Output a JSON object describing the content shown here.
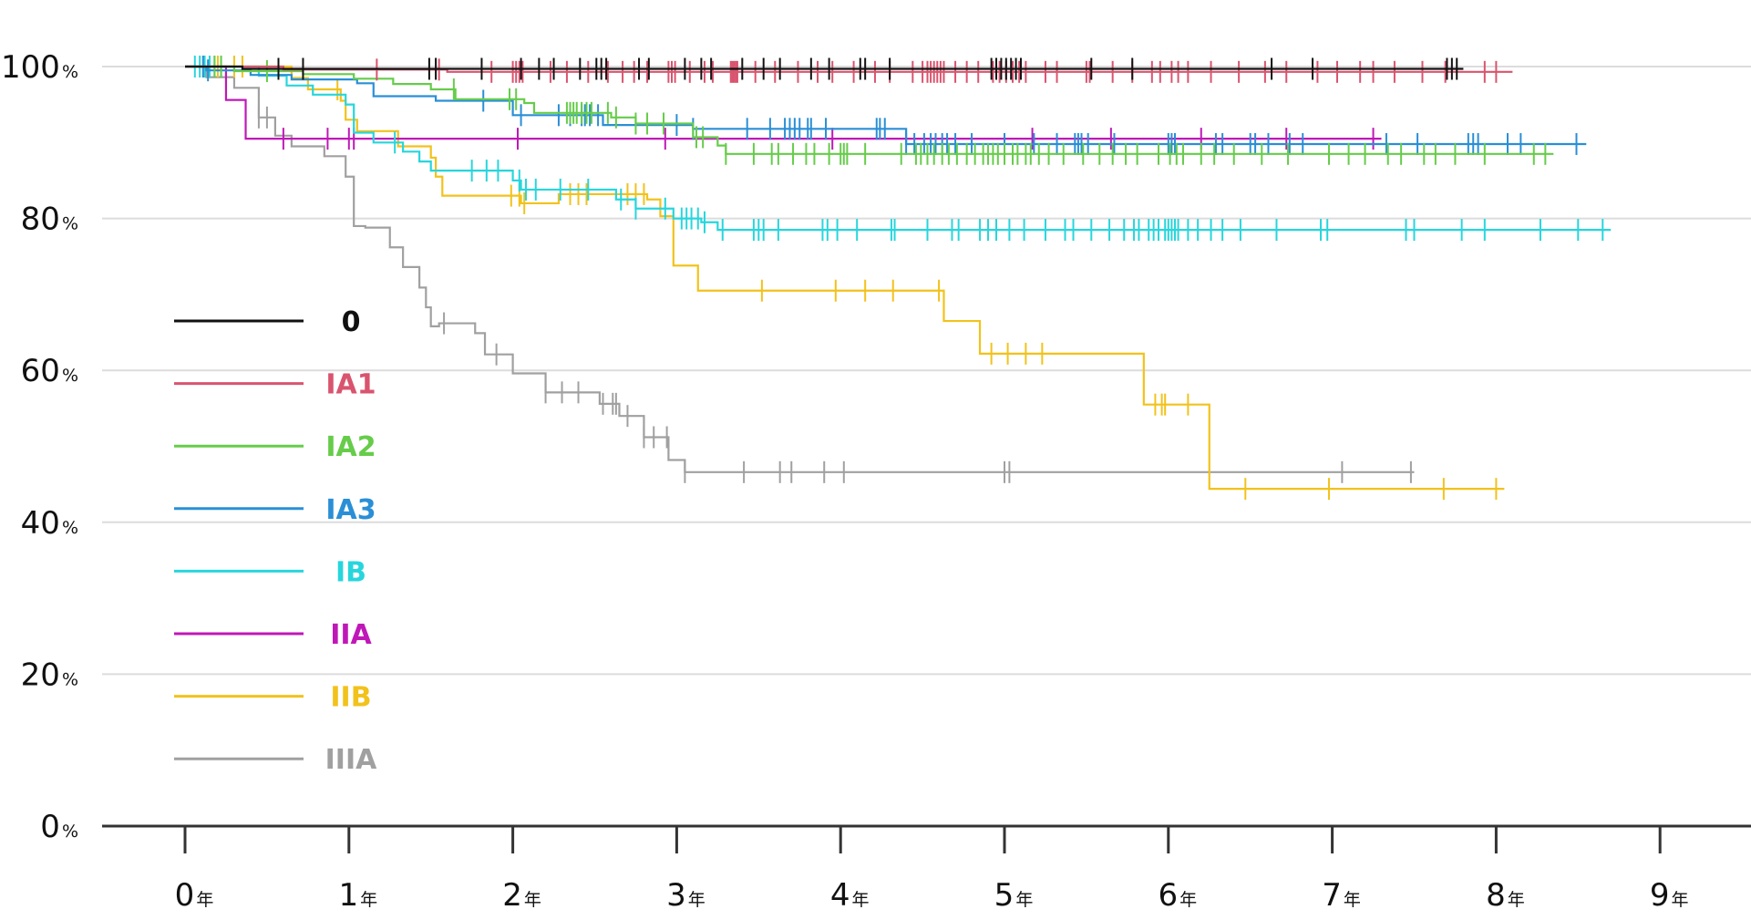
{
  "chart_data": {
    "type": "line",
    "subtype": "kaplan-meier-step",
    "title": "",
    "xlabel": "",
    "ylabel": "",
    "xlim": [
      -0.5,
      9.5
    ],
    "ylim": [
      0,
      100
    ],
    "x_ticks": [
      {
        "value": 0,
        "num": "0",
        "unit": "年"
      },
      {
        "value": 1,
        "num": "1",
        "unit": "年"
      },
      {
        "value": 2,
        "num": "2",
        "unit": "年"
      },
      {
        "value": 3,
        "num": "3",
        "unit": "年"
      },
      {
        "value": 4,
        "num": "4",
        "unit": "年"
      },
      {
        "value": 5,
        "num": "5",
        "unit": "年"
      },
      {
        "value": 6,
        "num": "6",
        "unit": "年"
      },
      {
        "value": 7,
        "num": "7",
        "unit": "年"
      },
      {
        "value": 8,
        "num": "8",
        "unit": "年"
      },
      {
        "value": 9,
        "num": "9",
        "unit": "年"
      }
    ],
    "y_ticks": [
      {
        "value": 0,
        "num": "0",
        "unit": "%"
      },
      {
        "value": 20,
        "num": "20",
        "unit": "%"
      },
      {
        "value": 40,
        "num": "40",
        "unit": "%"
      },
      {
        "value": 60,
        "num": "60",
        "unit": "%"
      },
      {
        "value": 80,
        "num": "80",
        "unit": "%"
      },
      {
        "value": 100,
        "num": "100",
        "unit": "%"
      }
    ],
    "grid": {
      "horizontal": true,
      "vertical": false
    },
    "legend_position": "left-middle",
    "series": [
      {
        "name": "0",
        "color": "#111111",
        "steps": [
          [
            0,
            100
          ],
          [
            0.35,
            99.7
          ],
          [
            7.8,
            99.7
          ]
        ],
        "censored": [
          0.57,
          0.72,
          1.49,
          1.53,
          1.81,
          2.05,
          2.16,
          2.25,
          2.41,
          2.51,
          2.54,
          2.57,
          2.77,
          2.83,
          3.05,
          3.15,
          3.21,
          3.4,
          3.53,
          3.63,
          3.82,
          3.93,
          4.12,
          4.15,
          4.3,
          4.92,
          4.95,
          4.98,
          5.01,
          5.04,
          5.07,
          5.1,
          5.53,
          5.78,
          6.63,
          6.88,
          7.7,
          7.73,
          7.76
        ]
      },
      {
        "name": "IA1",
        "color": "#d9546e",
        "steps": [
          [
            0,
            100
          ],
          [
            0.6,
            99.6
          ],
          [
            1.6,
            99.3
          ],
          [
            8.1,
            99.3
          ]
        ],
        "censored": [
          1.17,
          1.55,
          1.87,
          2.0,
          2.02,
          2.04,
          2.06,
          2.23,
          2.33,
          2.46,
          2.58,
          2.67,
          2.74,
          2.82,
          2.95,
          2.97,
          2.99,
          3.08,
          3.17,
          3.22,
          3.33,
          3.34,
          3.35,
          3.36,
          3.37,
          3.48,
          3.6,
          3.74,
          3.86,
          3.95,
          4.08,
          4.21,
          4.3,
          4.44,
          4.5,
          4.53,
          4.55,
          4.57,
          4.59,
          4.61,
          4.63,
          4.7,
          4.77,
          4.84,
          4.93,
          4.97,
          5.01,
          5.05,
          5.09,
          5.13,
          5.25,
          5.32,
          5.5,
          5.52,
          5.66,
          5.78,
          5.9,
          5.95,
          6.02,
          6.06,
          6.12,
          6.26,
          6.43,
          6.59,
          6.72,
          6.91,
          7.03,
          7.17,
          7.25,
          7.38,
          7.55,
          7.69,
          7.93,
          8.0
        ]
      },
      {
        "name": "IA2",
        "color": "#66cc4a",
        "steps": [
          [
            0,
            100
          ],
          [
            0.3,
            99.4
          ],
          [
            0.72,
            99.0
          ],
          [
            1.03,
            98.4
          ],
          [
            1.27,
            97.7
          ],
          [
            1.5,
            97.0
          ],
          [
            1.65,
            95.7
          ],
          [
            2.07,
            95.2
          ],
          [
            2.13,
            93.9
          ],
          [
            2.6,
            93.3
          ],
          [
            2.75,
            92.5
          ],
          [
            3.1,
            90.7
          ],
          [
            3.25,
            89.6
          ],
          [
            3.3,
            88.5
          ],
          [
            8.35,
            88.5
          ]
        ],
        "censored": [
          0.18,
          0.22,
          0.5,
          1.64,
          1.98,
          2.02,
          2.33,
          2.35,
          2.37,
          2.39,
          2.42,
          2.45,
          2.48,
          2.58,
          2.63,
          2.75,
          2.82,
          2.92,
          3.12,
          3.16,
          3.3,
          3.47,
          3.58,
          3.62,
          3.71,
          3.79,
          3.84,
          3.93,
          4.0,
          4.02,
          4.04,
          4.15,
          4.37,
          4.46,
          4.49,
          4.53,
          4.57,
          4.62,
          4.66,
          4.71,
          4.77,
          4.82,
          4.87,
          4.9,
          4.93,
          4.96,
          5.0,
          5.05,
          5.08,
          5.13,
          5.16,
          5.21,
          5.27,
          5.36,
          5.48,
          5.58,
          5.66,
          5.74,
          5.81,
          5.94,
          6.01,
          6.05,
          6.09,
          6.2,
          6.28,
          6.4,
          6.57,
          6.73,
          6.98,
          7.1,
          7.2,
          7.34,
          7.42,
          7.56,
          7.63,
          7.75,
          7.93,
          8.23,
          8.3
        ]
      },
      {
        "name": "IA3",
        "color": "#2a8fd6",
        "steps": [
          [
            0,
            100
          ],
          [
            0.13,
            99.5
          ],
          [
            0.4,
            98.9
          ],
          [
            0.65,
            98.3
          ],
          [
            1.05,
            97.8
          ],
          [
            1.15,
            96.1
          ],
          [
            1.53,
            95.5
          ],
          [
            2.0,
            93.6
          ],
          [
            2.55,
            92.3
          ],
          [
            3.1,
            91.8
          ],
          [
            4.4,
            89.8
          ],
          [
            8.55,
            89.8
          ]
        ],
        "censored": [
          0.11,
          0.14,
          1.82,
          2.05,
          2.28,
          2.35,
          2.42,
          2.44,
          2.47,
          2.52,
          3.0,
          3.1,
          3.43,
          3.57,
          3.66,
          3.69,
          3.72,
          3.75,
          3.8,
          3.82,
          3.91,
          4.22,
          4.24,
          4.27,
          4.4,
          4.45,
          4.51,
          4.55,
          4.58,
          4.62,
          4.65,
          4.7,
          4.8,
          5.0,
          5.18,
          5.32,
          5.43,
          5.45,
          5.47,
          5.51,
          5.67,
          6.0,
          6.02,
          6.04,
          6.29,
          6.33,
          6.5,
          6.53,
          6.61,
          6.74,
          6.82,
          7.33,
          7.52,
          7.83,
          7.86,
          7.89,
          8.07,
          8.15,
          8.49
        ]
      },
      {
        "name": "IB",
        "color": "#27d6dc",
        "steps": [
          [
            0,
            100
          ],
          [
            0.45,
            98.8
          ],
          [
            0.62,
            97.5
          ],
          [
            0.78,
            96.3
          ],
          [
            0.98,
            95.0
          ],
          [
            1.03,
            91.3
          ],
          [
            1.15,
            90.0
          ],
          [
            1.33,
            88.8
          ],
          [
            1.43,
            87.5
          ],
          [
            1.5,
            86.3
          ],
          [
            2.0,
            85.0
          ],
          [
            2.05,
            83.8
          ],
          [
            2.63,
            82.5
          ],
          [
            2.75,
            81.3
          ],
          [
            2.98,
            80.0
          ],
          [
            3.15,
            79.5
          ],
          [
            3.25,
            78.5
          ],
          [
            8.7,
            78.5
          ]
        ],
        "censored": [
          0.06,
          0.09,
          0.12,
          0.15,
          0.18,
          0.22,
          1.28,
          1.75,
          1.84,
          1.91,
          2.04,
          2.08,
          2.14,
          2.29,
          2.46,
          2.66,
          2.75,
          2.93,
          3.03,
          3.06,
          3.09,
          3.13,
          3.17,
          3.28,
          3.47,
          3.5,
          3.53,
          3.62,
          3.89,
          3.92,
          3.98,
          4.1,
          4.31,
          4.33,
          4.53,
          4.68,
          4.72,
          4.85,
          4.9,
          4.95,
          5.03,
          5.12,
          5.25,
          5.37,
          5.42,
          5.53,
          5.64,
          5.73,
          5.79,
          5.82,
          5.88,
          5.91,
          5.94,
          5.98,
          6.0,
          6.02,
          6.04,
          6.06,
          6.12,
          6.18,
          6.26,
          6.33,
          6.44,
          6.66,
          6.93,
          6.97,
          7.45,
          7.5,
          7.79,
          7.93,
          8.27,
          8.5,
          8.65
        ]
      },
      {
        "name": "IIA",
        "color": "#c018b8",
        "steps": [
          [
            0,
            100
          ],
          [
            0.25,
            95.6
          ],
          [
            0.37,
            90.5
          ],
          [
            7.3,
            90.5
          ]
        ],
        "censored": [
          0.6,
          0.87,
          1.0,
          1.03,
          2.03,
          2.93,
          3.95,
          5.17,
          5.65,
          6.2,
          6.72,
          7.25
        ]
      },
      {
        "name": "IIB",
        "color": "#f2c21c",
        "steps": [
          [
            0,
            100
          ],
          [
            0.65,
            98.5
          ],
          [
            0.75,
            97.0
          ],
          [
            0.95,
            95.5
          ],
          [
            0.98,
            93.0
          ],
          [
            1.05,
            91.5
          ],
          [
            1.3,
            89.5
          ],
          [
            1.5,
            88.0
          ],
          [
            1.53,
            85.5
          ],
          [
            1.57,
            83.0
          ],
          [
            2.05,
            82.0
          ],
          [
            2.28,
            83.2
          ],
          [
            2.82,
            82.5
          ],
          [
            2.9,
            80.3
          ],
          [
            2.98,
            73.8
          ],
          [
            3.13,
            70.5
          ],
          [
            4.63,
            66.5
          ],
          [
            4.85,
            62.2
          ],
          [
            5.85,
            55.5
          ],
          [
            6.25,
            44.4
          ],
          [
            8.05,
            44.4
          ]
        ],
        "censored": [
          0.15,
          0.2,
          0.3,
          0.35,
          0.93,
          1.99,
          2.04,
          2.07,
          2.35,
          2.4,
          2.45,
          2.7,
          2.75,
          2.8,
          3.52,
          3.97,
          4.15,
          4.32,
          4.6,
          4.92,
          5.02,
          5.13,
          5.23,
          5.92,
          5.98,
          5.96,
          6.12,
          6.47,
          6.98,
          7.68,
          8.0
        ]
      },
      {
        "name": "IIIA",
        "color": "#a0a0a0",
        "steps": [
          [
            0,
            100
          ],
          [
            0.13,
            98.6
          ],
          [
            0.3,
            97.2
          ],
          [
            0.45,
            93.3
          ],
          [
            0.55,
            90.9
          ],
          [
            0.65,
            89.5
          ],
          [
            0.85,
            88.2
          ],
          [
            0.98,
            85.5
          ],
          [
            1.03,
            79.0
          ],
          [
            1.1,
            78.8
          ],
          [
            1.25,
            76.2
          ],
          [
            1.33,
            73.6
          ],
          [
            1.43,
            70.9
          ],
          [
            1.47,
            68.3
          ],
          [
            1.5,
            65.8
          ],
          [
            1.55,
            66.2
          ],
          [
            1.77,
            64.9
          ],
          [
            1.83,
            62.1
          ],
          [
            2.0,
            59.6
          ],
          [
            2.2,
            57.1
          ],
          [
            2.53,
            55.6
          ],
          [
            2.65,
            54.0
          ],
          [
            2.8,
            51.2
          ],
          [
            2.95,
            48.2
          ],
          [
            3.05,
            46.6
          ],
          [
            7.5,
            46.6
          ]
        ],
        "censored": [
          0.45,
          0.5,
          1.58,
          1.9,
          2.2,
          2.3,
          2.4,
          2.55,
          2.61,
          2.63,
          2.7,
          2.8,
          2.86,
          2.94,
          3.05,
          3.41,
          3.63,
          3.7,
          3.9,
          4.02,
          5.0,
          5.03,
          7.06,
          7.48
        ]
      }
    ]
  }
}
